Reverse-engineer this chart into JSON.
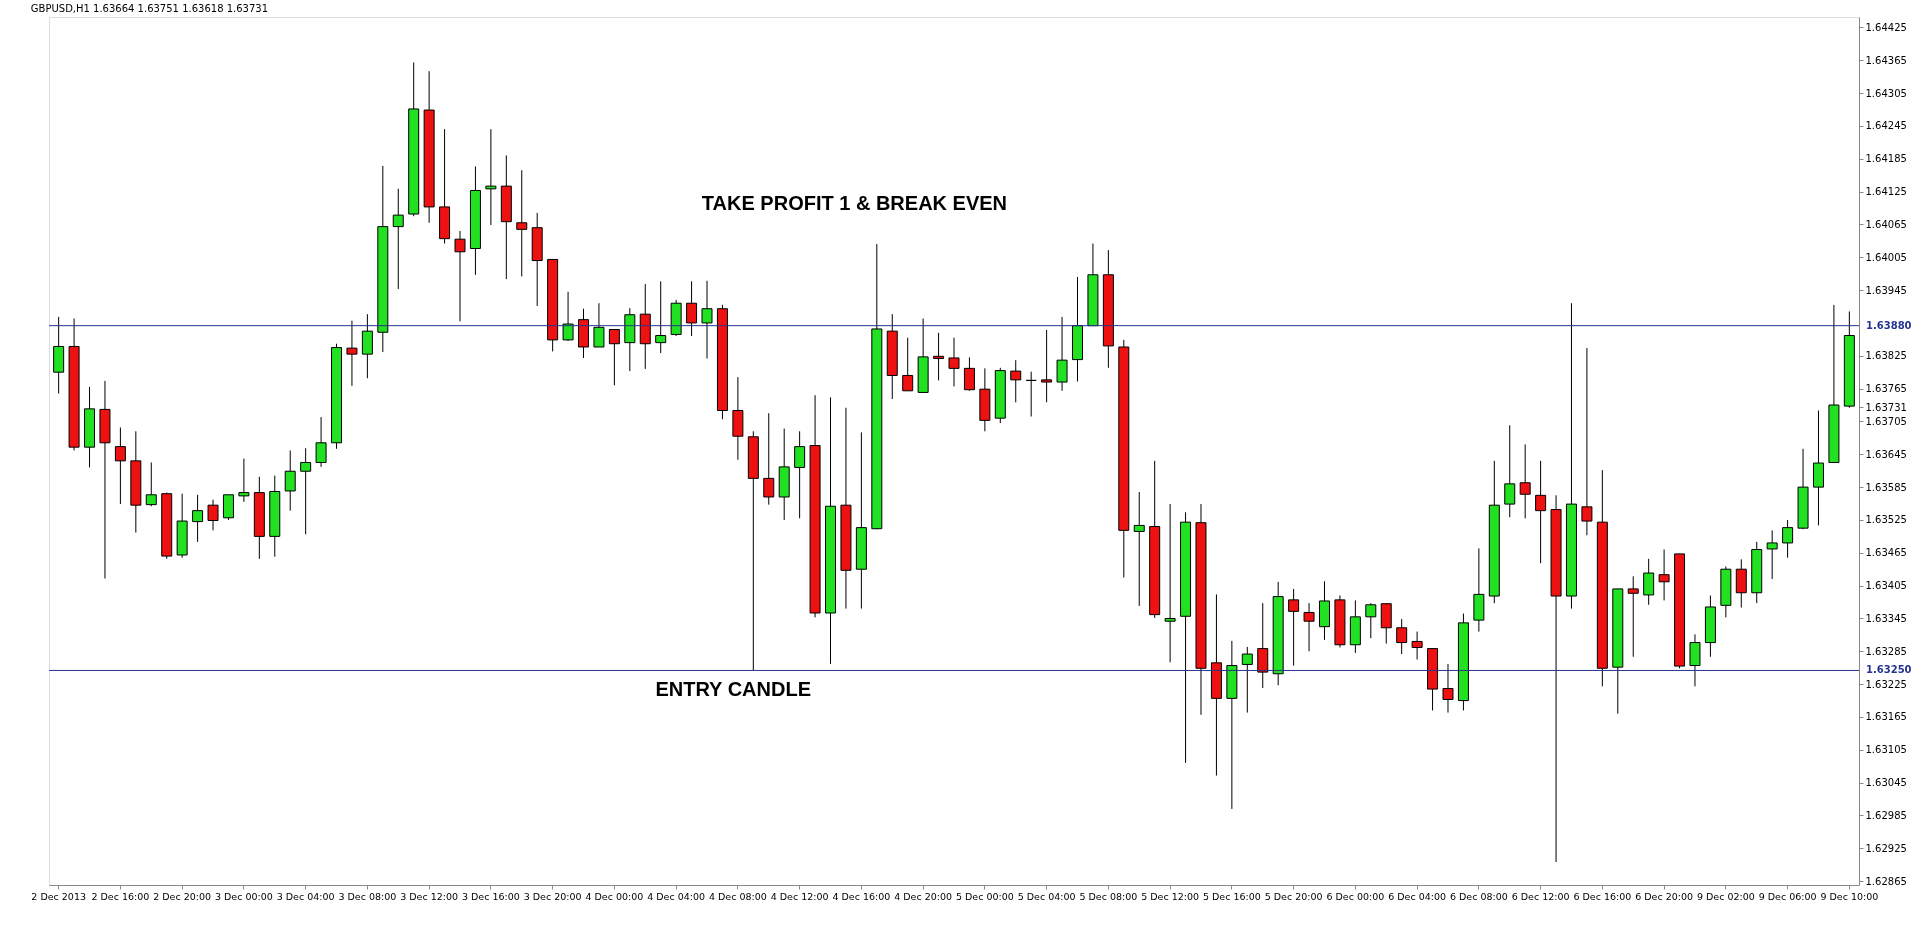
{
  "chart_data": {
    "type": "candlestick",
    "title": "GBPUSD,H1  1.63664 1.63751 1.63618 1.63731",
    "categories": [
      "2 Dec 2013",
      null,
      null,
      null,
      "2 Dec 16:00",
      null,
      null,
      null,
      "2 Dec 20:00",
      null,
      null,
      null,
      "3 Dec 00:00",
      null,
      null,
      null,
      "3 Dec 04:00",
      null,
      null,
      null,
      "3 Dec 08:00",
      null,
      null,
      null,
      "3 Dec 12:00",
      null,
      null,
      null,
      "3 Dec 16:00",
      null,
      null,
      null,
      "3 Dec 20:00",
      null,
      null,
      null,
      "4 Dec 00:00",
      null,
      null,
      null,
      "4 Dec 04:00",
      null,
      null,
      null,
      "4 Dec 08:00",
      null,
      null,
      null,
      "4 Dec 12:00",
      null,
      null,
      null,
      "4 Dec 16:00",
      null,
      null,
      null,
      "4 Dec 20:00",
      null,
      null,
      null,
      "5 Dec 00:00",
      null,
      null,
      null,
      "5 Dec 04:00",
      null,
      null,
      null,
      "5 Dec 08:00",
      null,
      null,
      null,
      "5 Dec 12:00",
      null,
      null,
      null,
      "5 Dec 16:00",
      null,
      null,
      null,
      "5 Dec 20:00",
      null,
      null,
      null,
      "6 Dec 00:00",
      null,
      null,
      null,
      "6 Dec 04:00",
      null,
      null,
      null,
      "6 Dec 08:00",
      null,
      null,
      null,
      "6 Dec 12:00",
      null,
      null,
      null,
      "6 Dec 16:00",
      null,
      null,
      null,
      "6 Dec 20:00",
      null,
      null,
      null,
      "9 Dec 02:00",
      null,
      null,
      null,
      "9 Dec 06:00",
      null,
      null,
      null,
      "9 Dec 10:00"
    ],
    "ohlc": [
      [
        1.63795,
        1.63896,
        1.63756,
        1.63842
      ],
      [
        1.63842,
        1.63893,
        1.63652,
        1.63658
      ],
      [
        1.63658,
        1.63768,
        1.63621,
        1.63728
      ],
      [
        1.63727,
        1.63779,
        1.63418,
        1.63666
      ],
      [
        1.63659,
        1.63694,
        1.63554,
        1.63633
      ],
      [
        1.63633,
        1.63687,
        1.63502,
        1.63552
      ],
      [
        1.63553,
        1.6363,
        1.6355,
        1.63571
      ],
      [
        1.63573,
        1.63575,
        1.63454,
        1.63459
      ],
      [
        1.63461,
        1.63573,
        1.63456,
        1.63523
      ],
      [
        1.63522,
        1.63571,
        1.63485,
        1.63542
      ],
      [
        1.63552,
        1.63562,
        1.63506,
        1.63524
      ],
      [
        1.63529,
        1.63571,
        1.63525,
        1.63571
      ],
      [
        1.63569,
        1.63637,
        1.63558,
        1.63575
      ],
      [
        1.63575,
        1.63604,
        1.63454,
        1.63495
      ],
      [
        1.63495,
        1.63606,
        1.63458,
        1.63577
      ],
      [
        1.63578,
        1.63652,
        1.63542,
        1.63614
      ],
      [
        1.63614,
        1.63656,
        1.63499,
        1.6363
      ],
      [
        1.6363,
        1.63713,
        1.63622,
        1.63666
      ],
      [
        1.63666,
        1.63847,
        1.63655,
        1.6384
      ],
      [
        1.63839,
        1.63889,
        1.6377,
        1.63828
      ],
      [
        1.63828,
        1.63901,
        1.63784,
        1.6387
      ],
      [
        1.63868,
        1.64172,
        1.63832,
        1.64061
      ],
      [
        1.64061,
        1.6413,
        1.63947,
        1.64082
      ],
      [
        1.64084,
        1.64361,
        1.6408,
        1.64276
      ],
      [
        1.64274,
        1.64345,
        1.64068,
        1.64097
      ],
      [
        1.64097,
        1.64239,
        1.6403,
        1.64039
      ],
      [
        1.64038,
        1.64053,
        1.63888,
        1.64015
      ],
      [
        1.64021,
        1.64171,
        1.63973,
        1.64127
      ],
      [
        1.6413,
        1.64239,
        1.64064,
        1.64135
      ],
      [
        1.64135,
        1.64191,
        1.63965,
        1.6407
      ],
      [
        1.64068,
        1.64164,
        1.6397,
        1.64056
      ],
      [
        1.64059,
        1.64086,
        1.63916,
        1.63999
      ],
      [
        1.64001,
        1.64001,
        1.63833,
        1.63854
      ],
      [
        1.63854,
        1.63942,
        1.63852,
        1.63883
      ],
      [
        1.63891,
        1.63911,
        1.63821,
        1.63841
      ],
      [
        1.63841,
        1.63921,
        1.63841,
        1.63877
      ],
      [
        1.63873,
        1.63873,
        1.63771,
        1.63847
      ],
      [
        1.63849,
        1.63912,
        1.63797,
        1.639
      ],
      [
        1.63901,
        1.63956,
        1.63801,
        1.63847
      ],
      [
        1.63849,
        1.63961,
        1.6383,
        1.63862
      ],
      [
        1.63864,
        1.63927,
        1.63861,
        1.63921
      ],
      [
        1.63921,
        1.63961,
        1.63861,
        1.63885
      ],
      [
        1.63885,
        1.63962,
        1.6382,
        1.63911
      ],
      [
        1.63911,
        1.63918,
        1.63709,
        1.63725
      ],
      [
        1.63725,
        1.63786,
        1.63635,
        1.63678
      ],
      [
        1.63677,
        1.63687,
        1.6325,
        1.63601
      ],
      [
        1.63601,
        1.6372,
        1.63553,
        1.63567
      ],
      [
        1.63567,
        1.63692,
        1.63525,
        1.63622
      ],
      [
        1.63621,
        1.63687,
        1.63528,
        1.63659
      ],
      [
        1.63661,
        1.63753,
        1.63347,
        1.63355
      ],
      [
        1.63355,
        1.63749,
        1.63262,
        1.6355
      ],
      [
        1.63552,
        1.6373,
        1.63363,
        1.63433
      ],
      [
        1.63435,
        1.63685,
        1.63363,
        1.63511
      ],
      [
        1.63509,
        1.64029,
        1.63508,
        1.63874
      ],
      [
        1.6387,
        1.63901,
        1.63746,
        1.63789
      ],
      [
        1.63789,
        1.63858,
        1.63761,
        1.63761
      ],
      [
        1.63758,
        1.63893,
        1.63758,
        1.63823
      ],
      [
        1.63824,
        1.63867,
        1.6378,
        1.6382
      ],
      [
        1.63821,
        1.63858,
        1.63769,
        1.63802
      ],
      [
        1.63802,
        1.63822,
        1.63761,
        1.63763
      ],
      [
        1.63764,
        1.63802,
        1.63687,
        1.63707
      ],
      [
        1.63711,
        1.63803,
        1.63702,
        1.63798
      ],
      [
        1.63797,
        1.63817,
        1.6374,
        1.63781
      ],
      [
        1.6378,
        1.63796,
        1.63714,
        1.6378
      ],
      [
        1.63781,
        1.63872,
        1.6374,
        1.63777
      ],
      [
        1.63777,
        1.63896,
        1.63761,
        1.63817
      ],
      [
        1.63818,
        1.63969,
        1.63778,
        1.6388
      ],
      [
        1.6388,
        1.6403,
        1.6388,
        1.63973
      ],
      [
        1.63973,
        1.64018,
        1.63803,
        1.63843
      ],
      [
        1.63841,
        1.63854,
        1.6342,
        1.63506
      ],
      [
        1.63504,
        1.63576,
        1.63368,
        1.63515
      ],
      [
        1.63513,
        1.63633,
        1.63346,
        1.63352
      ],
      [
        1.6334,
        1.63554,
        1.63265,
        1.63345
      ],
      [
        1.63349,
        1.63539,
        1.63081,
        1.63521
      ],
      [
        1.6352,
        1.63554,
        1.63169,
        1.63254
      ],
      [
        1.63264,
        1.63389,
        1.63058,
        1.63199
      ],
      [
        1.63199,
        1.63304,
        1.62997,
        1.63259
      ],
      [
        1.63261,
        1.63293,
        1.63173,
        1.6328
      ],
      [
        1.6329,
        1.63373,
        1.63218,
        1.63247
      ],
      [
        1.63244,
        1.63412,
        1.63223,
        1.63385
      ],
      [
        1.63379,
        1.63399,
        1.63259,
        1.63358
      ],
      [
        1.63356,
        1.63373,
        1.63285,
        1.6334
      ],
      [
        1.6333,
        1.63413,
        1.63306,
        1.63377
      ],
      [
        1.63379,
        1.63387,
        1.63292,
        1.63297
      ],
      [
        1.63297,
        1.63378,
        1.63282,
        1.63348
      ],
      [
        1.63348,
        1.63373,
        1.63309,
        1.6337
      ],
      [
        1.63372,
        1.63372,
        1.63299,
        1.63328
      ],
      [
        1.63328,
        1.63344,
        1.6328,
        1.63301
      ],
      [
        1.63303,
        1.63321,
        1.6327,
        1.63292
      ],
      [
        1.6329,
        1.6329,
        1.63177,
        1.63216
      ],
      [
        1.63217,
        1.63262,
        1.63173,
        1.63197
      ],
      [
        1.63195,
        1.63354,
        1.63177,
        1.63337
      ],
      [
        1.63342,
        1.63473,
        1.63321,
        1.63389
      ],
      [
        1.63386,
        1.63633,
        1.63373,
        1.63552
      ],
      [
        1.63554,
        1.63698,
        1.6353,
        1.63591
      ],
      [
        1.63593,
        1.63663,
        1.63528,
        1.63572
      ],
      [
        1.6357,
        1.63633,
        1.63446,
        1.63542
      ],
      [
        1.63544,
        1.6357,
        1.629,
        1.63386
      ],
      [
        1.63386,
        1.63921,
        1.63363,
        1.63554
      ],
      [
        1.63549,
        1.63839,
        1.63497,
        1.63523
      ],
      [
        1.63521,
        1.63616,
        1.63221,
        1.63254
      ],
      [
        1.63256,
        1.63399,
        1.63171,
        1.63399
      ],
      [
        1.63399,
        1.63422,
        1.63275,
        1.63391
      ],
      [
        1.63388,
        1.63454,
        1.6337,
        1.63428
      ],
      [
        1.63425,
        1.63471,
        1.63378,
        1.63412
      ],
      [
        1.63463,
        1.63463,
        1.63254,
        1.63258
      ],
      [
        1.63259,
        1.63316,
        1.63221,
        1.63301
      ],
      [
        1.63301,
        1.63387,
        1.63275,
        1.63366
      ],
      [
        1.63369,
        1.6344,
        1.63347,
        1.63435
      ],
      [
        1.63435,
        1.63453,
        1.63365,
        1.63392
      ],
      [
        1.63392,
        1.63485,
        1.63373,
        1.63471
      ],
      [
        1.63472,
        1.63506,
        1.63417,
        1.63483
      ],
      [
        1.63483,
        1.63525,
        1.63456,
        1.63511
      ],
      [
        1.6351,
        1.63655,
        1.63508,
        1.63585
      ],
      [
        1.63585,
        1.63725,
        1.63515,
        1.63629
      ],
      [
        1.6363,
        1.63918,
        1.6363,
        1.63735
      ],
      [
        1.63733,
        1.63906,
        1.6373,
        1.63862
      ]
    ],
    "colors": [
      "#22e022",
      "#ee1111",
      "#22e022",
      "#ee1111",
      "#ee1111",
      "#ee1111",
      "#22e022",
      "#ee1111",
      "#22e022",
      "#22e022",
      "#ee1111",
      "#22e022",
      "#22e022",
      "#ee1111",
      "#22e022",
      "#22e022",
      "#22e022",
      "#22e022",
      "#22e022",
      "#ee1111",
      "#22e022",
      "#22e022",
      "#22e022",
      "#22e022",
      "#ee1111",
      "#ee1111",
      "#ee1111",
      "#22e022",
      "#22e022",
      "#ee1111",
      "#ee1111",
      "#ee1111",
      "#ee1111",
      "#22e022",
      "#ee1111",
      "#22e022",
      "#ee1111",
      "#22e022",
      "#ee1111",
      "#22e022",
      "#22e022",
      "#ee1111",
      "#22e022",
      "#ee1111",
      "#ee1111",
      "#ee1111",
      "#ee1111",
      "#22e022",
      "#22e022",
      "#ee1111",
      "#22e022",
      "#ee1111",
      "#22e022",
      "#22e022",
      "#ee1111",
      "#ee1111",
      "#22e022",
      "#ee1111",
      "#ee1111",
      "#ee1111",
      "#ee1111",
      "#22e022",
      "#ee1111",
      "#000000",
      "#ee1111",
      "#22e022",
      "#22e022",
      "#22e022",
      "#ee1111",
      "#ee1111",
      "#22e022",
      "#ee1111",
      "#22e022",
      "#22e022",
      "#ee1111",
      "#ee1111",
      "#22e022",
      "#22e022",
      "#ee1111",
      "#22e022",
      "#ee1111",
      "#ee1111",
      "#22e022",
      "#ee1111",
      "#22e022",
      "#22e022",
      "#ee1111",
      "#ee1111",
      "#ee1111",
      "#ee1111",
      "#ee1111",
      "#22e022",
      "#22e022",
      "#22e022",
      "#22e022",
      "#ee1111",
      "#ee1111",
      "#ee1111",
      "#22e022",
      "#ee1111",
      "#ee1111",
      "#22e022",
      "#ee1111",
      "#22e022",
      "#ee1111",
      "#ee1111",
      "#22e022",
      "#22e022",
      "#22e022",
      "#ee1111",
      "#22e022",
      "#22e022",
      "#22e022",
      "#22e022",
      "#22e022",
      "#22e022",
      "#22e022"
    ],
    "ylim": [
      1.62858,
      1.64444
    ],
    "yticks": [
      1.62865,
      1.62925,
      1.62985,
      1.63045,
      1.63105,
      1.63165,
      1.63225,
      1.63285,
      1.63345,
      1.63405,
      1.63465,
      1.63525,
      1.63585,
      1.63645,
      1.63705,
      1.63731,
      1.63765,
      1.63825,
      1.63945,
      1.64005,
      1.64065,
      1.64125,
      1.64185,
      1.64245,
      1.64305,
      1.64365,
      1.64425
    ],
    "ref_lines": [
      {
        "axis": "y",
        "value": 1.6388,
        "label": "1.63880",
        "color": "#27358f"
      },
      {
        "axis": "y",
        "value": 1.6325,
        "label": "1.63250",
        "color": "#27358f"
      }
    ],
    "annotations": [
      "TAKE PROFIT 1 & BREAK EVEN",
      "ENTRY CANDLE"
    ],
    "grid": false
  }
}
